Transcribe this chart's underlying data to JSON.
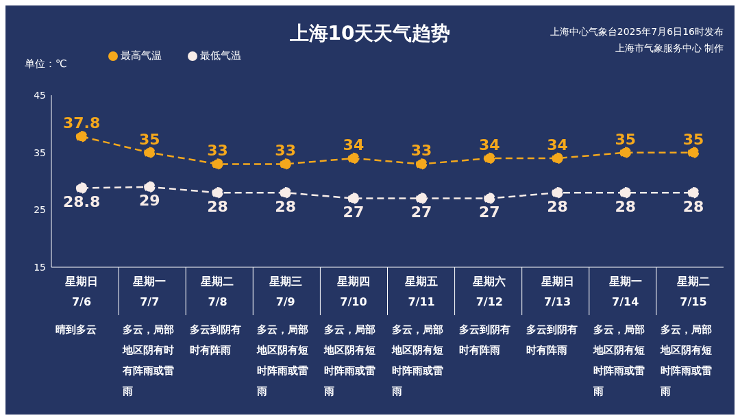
{
  "chart_data": {
    "type": "line",
    "title": "上海10天天气趋势",
    "ylabel": "单位：℃",
    "categories": [
      "星期日\n7/6",
      "星期一\n7/7",
      "星期二\n7/8",
      "星期三\n7/9",
      "星期四\n7/10",
      "星期五\n7/11",
      "星期六\n7/12",
      "星期日\n7/13",
      "星期一\n7/14",
      "星期二\n7/15"
    ],
    "series": [
      {
        "name": "最高气温",
        "color": "#f5a81c",
        "values": [
          37.8,
          35,
          33,
          33,
          34,
          33,
          34,
          34,
          35,
          35
        ]
      },
      {
        "name": "最低气温",
        "color": "#f7ece8",
        "values": [
          28.8,
          29,
          28,
          28,
          27,
          27,
          27,
          28,
          28,
          28
        ]
      }
    ],
    "ylim": [
      15,
      45
    ],
    "yticks": [
      15,
      25,
      35,
      45
    ],
    "grid": false,
    "legend": "top left",
    "marker": "circle",
    "line_style": "dashed",
    "data_labels": true,
    "annotations": [
      "晴到多云",
      "多云，局部地区阴有时有阵雨或雷雨",
      "多云到阴有时有阵雨",
      "多云，局部地区阴有短时阵雨或雷雨",
      "多云，局部地区阴有短时阵雨或雷雨",
      "多云，局部地区阴有短时阵雨或雷雨",
      "多云到阴有时有阵雨",
      "多云到阴有时有阵雨",
      "多云，局部地区阴有短时阵雨或雷雨",
      "多云，局部地区阴有短时阵雨或雷雨",
      "上海中心气象台2025年7月6日16时发布",
      "上海市气象服务中心 制作"
    ]
  }
}
